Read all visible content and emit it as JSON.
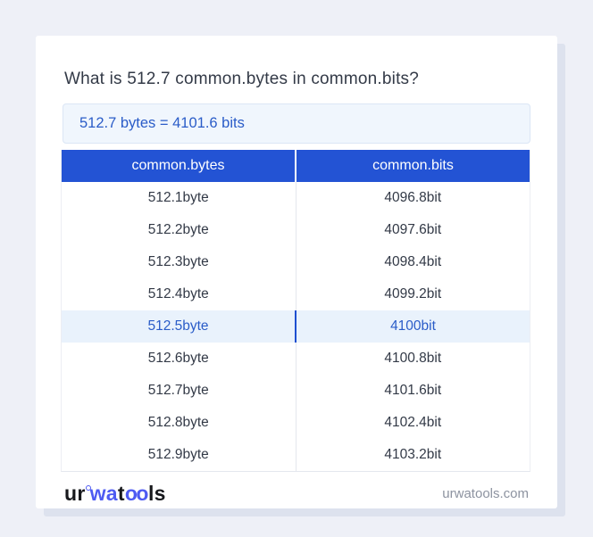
{
  "question": "What is 512.7 common.bytes in common.bits?",
  "result": {
    "text": "512.7 bytes = 4101.6 bits"
  },
  "table": {
    "headers": [
      "common.bytes",
      "common.bits"
    ],
    "rows": [
      {
        "bytes": "512.1byte",
        "bits": "4096.8bit"
      },
      {
        "bytes": "512.2byte",
        "bits": "4097.6bit"
      },
      {
        "bytes": "512.3byte",
        "bits": "4098.4bit"
      },
      {
        "bytes": "512.4byte",
        "bits": "4099.2bit"
      },
      {
        "bytes": "512.5byte",
        "bits": "4100bit"
      },
      {
        "bytes": "512.6byte",
        "bits": "4100.8bit"
      },
      {
        "bytes": "512.7byte",
        "bits": "4101.6bit"
      },
      {
        "bytes": "512.8byte",
        "bits": "4102.4bit"
      },
      {
        "bytes": "512.9byte",
        "bits": "4103.2bit"
      }
    ],
    "highlighted_index": 4
  },
  "footer": {
    "logo": {
      "part1": "ur",
      "part2": "wa",
      "part3": "t",
      "part4": "oo",
      "part5": "ls"
    },
    "site": "urwatools.com"
  },
  "colors": {
    "page_background": "#eef0f7",
    "card_background": "#ffffff",
    "card_shadow": "#dde2ee",
    "header_blue": "#2353d4",
    "accent_blue_text": "#2a5cc8",
    "highlight_row_background": "#e9f2fc",
    "highlight_divider": "#1d4fd0",
    "result_box_background": "#f0f6fd",
    "result_box_border": "#dbe6f5",
    "body_text": "#333a47",
    "footer_gray": "#8d93a0",
    "logo_blue": "#4e5bf2",
    "logo_dark": "#17181c"
  }
}
